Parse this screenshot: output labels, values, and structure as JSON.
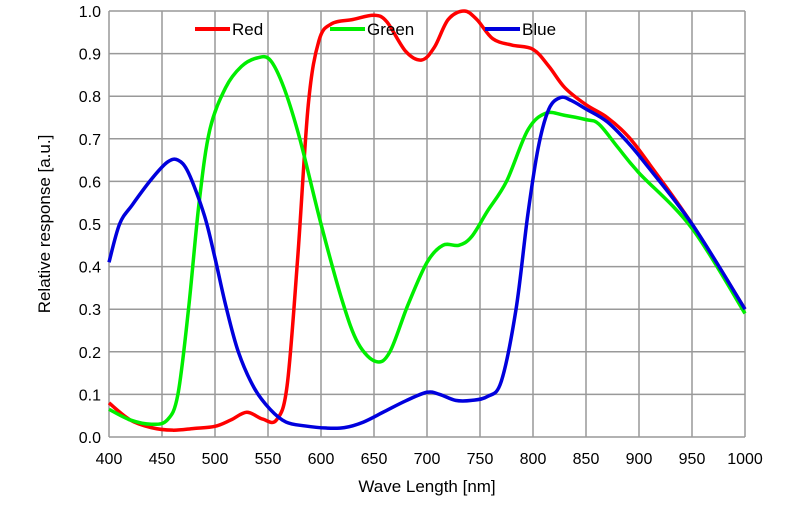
{
  "chart_data": {
    "type": "line",
    "title": "",
    "xlabel": "Wave Length [nm]",
    "ylabel": "Relative response [a.u.]",
    "xlim": [
      400,
      1000
    ],
    "ylim": [
      0,
      1.0
    ],
    "xticks": [
      400,
      450,
      500,
      550,
      600,
      650,
      700,
      750,
      800,
      850,
      900,
      950,
      1000
    ],
    "yticks": [
      "0.0",
      "0.1",
      "0.2",
      "0.3",
      "0.4",
      "0.5",
      "0.6",
      "0.7",
      "0.8",
      "0.9",
      "1.0"
    ],
    "grid": true,
    "legend_position": "top",
    "series": [
      {
        "name": "Red",
        "color": "#ff0000",
        "points": [
          [
            400,
            0.08
          ],
          [
            420,
            0.04
          ],
          [
            440,
            0.022
          ],
          [
            460,
            0.016
          ],
          [
            480,
            0.02
          ],
          [
            500,
            0.025
          ],
          [
            515,
            0.04
          ],
          [
            530,
            0.058
          ],
          [
            545,
            0.042
          ],
          [
            558,
            0.04
          ],
          [
            568,
            0.12
          ],
          [
            578,
            0.42
          ],
          [
            588,
            0.78
          ],
          [
            598,
            0.93
          ],
          [
            610,
            0.97
          ],
          [
            630,
            0.98
          ],
          [
            650,
            0.99
          ],
          [
            662,
            0.975
          ],
          [
            680,
            0.905
          ],
          [
            695,
            0.885
          ],
          [
            707,
            0.915
          ],
          [
            720,
            0.98
          ],
          [
            735,
            1.0
          ],
          [
            747,
            0.98
          ],
          [
            762,
            0.935
          ],
          [
            780,
            0.92
          ],
          [
            800,
            0.91
          ],
          [
            815,
            0.87
          ],
          [
            830,
            0.82
          ],
          [
            850,
            0.78
          ],
          [
            870,
            0.75
          ],
          [
            890,
            0.705
          ],
          [
            910,
            0.64
          ],
          [
            950,
            0.5
          ],
          [
            1000,
            0.3
          ]
        ]
      },
      {
        "name": "Green",
        "color": "#00ee00",
        "points": [
          [
            400,
            0.065
          ],
          [
            420,
            0.04
          ],
          [
            440,
            0.03
          ],
          [
            455,
            0.04
          ],
          [
            465,
            0.1
          ],
          [
            475,
            0.3
          ],
          [
            485,
            0.55
          ],
          [
            495,
            0.72
          ],
          [
            510,
            0.82
          ],
          [
            525,
            0.87
          ],
          [
            540,
            0.89
          ],
          [
            552,
            0.885
          ],
          [
            565,
            0.82
          ],
          [
            580,
            0.7
          ],
          [
            600,
            0.5
          ],
          [
            620,
            0.32
          ],
          [
            635,
            0.22
          ],
          [
            652,
            0.177
          ],
          [
            665,
            0.2
          ],
          [
            682,
            0.31
          ],
          [
            700,
            0.41
          ],
          [
            715,
            0.45
          ],
          [
            730,
            0.45
          ],
          [
            742,
            0.47
          ],
          [
            757,
            0.53
          ],
          [
            775,
            0.6
          ],
          [
            795,
            0.72
          ],
          [
            812,
            0.76
          ],
          [
            830,
            0.755
          ],
          [
            850,
            0.745
          ],
          [
            862,
            0.735
          ],
          [
            880,
            0.68
          ],
          [
            900,
            0.62
          ],
          [
            950,
            0.49
          ],
          [
            1000,
            0.29
          ]
        ]
      },
      {
        "name": "Blue",
        "color": "#0000dd",
        "points": [
          [
            400,
            0.41
          ],
          [
            410,
            0.5
          ],
          [
            422,
            0.545
          ],
          [
            440,
            0.605
          ],
          [
            455,
            0.645
          ],
          [
            465,
            0.65
          ],
          [
            475,
            0.62
          ],
          [
            490,
            0.52
          ],
          [
            500,
            0.42
          ],
          [
            510,
            0.31
          ],
          [
            522,
            0.2
          ],
          [
            537,
            0.115
          ],
          [
            552,
            0.065
          ],
          [
            567,
            0.035
          ],
          [
            585,
            0.026
          ],
          [
            605,
            0.021
          ],
          [
            622,
            0.022
          ],
          [
            640,
            0.035
          ],
          [
            660,
            0.06
          ],
          [
            680,
            0.085
          ],
          [
            700,
            0.105
          ],
          [
            712,
            0.1
          ],
          [
            727,
            0.086
          ],
          [
            742,
            0.086
          ],
          [
            757,
            0.095
          ],
          [
            770,
            0.13
          ],
          [
            784,
            0.3
          ],
          [
            795,
            0.52
          ],
          [
            805,
            0.68
          ],
          [
            815,
            0.77
          ],
          [
            826,
            0.797
          ],
          [
            836,
            0.79
          ],
          [
            850,
            0.77
          ],
          [
            870,
            0.74
          ],
          [
            890,
            0.69
          ],
          [
            905,
            0.645
          ],
          [
            950,
            0.5
          ],
          [
            1000,
            0.3
          ]
        ]
      }
    ]
  }
}
